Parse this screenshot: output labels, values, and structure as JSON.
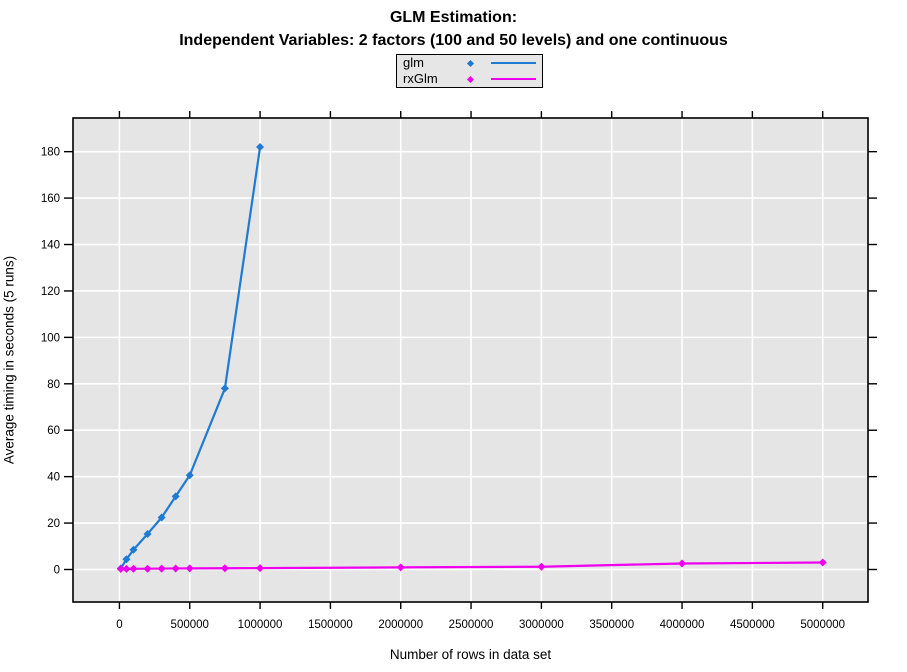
{
  "title": {
    "line1": "GLM Estimation:",
    "line2": "Independent Variables: 2 factors (100 and 50 levels) and one continuous"
  },
  "legend": {
    "position": "top-center",
    "items": [
      {
        "label": "glm",
        "color": "#1e7ad2",
        "marker": "diamond",
        "line": true
      },
      {
        "label": "rxGlm",
        "color": "#ee00ee",
        "marker": "diamond",
        "line": true
      }
    ]
  },
  "chart_data": {
    "type": "line",
    "title": "GLM Estimation: Independent Variables: 2 factors (100 and 50 levels) and one continuous",
    "xlabel": "Number of rows in data set",
    "ylabel": "Average timing in seconds (5 runs)",
    "x_ticks": [
      0,
      500000,
      1000000,
      1500000,
      2000000,
      2500000,
      3000000,
      3500000,
      4000000,
      4500000,
      5000000
    ],
    "y_ticks": [
      0,
      20,
      40,
      60,
      80,
      100,
      120,
      140,
      160,
      180
    ],
    "xlim": [
      -330000,
      5322000
    ],
    "ylim": [
      -14,
      194.5
    ],
    "grid": true,
    "plot_bg_color": "#e5e5e5",
    "grid_color": "#ffffff",
    "axis_color": "#000000",
    "series": [
      {
        "name": "glm",
        "color": "#1e7ad2",
        "marker": "diamond",
        "x": [
          10000,
          50000,
          100000,
          200000,
          300000,
          400000,
          500000,
          750000,
          1000000
        ],
        "y": [
          0.5,
          4.4,
          8.5,
          15.3,
          22.4,
          31.5,
          40.6,
          78,
          182
        ]
      },
      {
        "name": "rxGlm",
        "color": "#ee00ee",
        "marker": "diamond",
        "x": [
          10000,
          50000,
          100000,
          200000,
          300000,
          400000,
          500000,
          750000,
          1000000,
          2000000,
          3000000,
          4000000,
          5000000
        ],
        "y": [
          0.2,
          0.25,
          0.3,
          0.35,
          0.4,
          0.45,
          0.5,
          0.55,
          0.6,
          0.9,
          1.2,
          2.6,
          3.0
        ]
      }
    ]
  }
}
